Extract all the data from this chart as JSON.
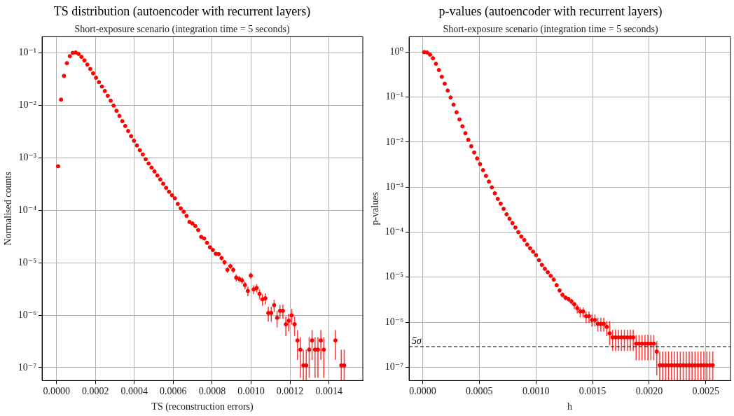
{
  "chart_data": [
    {
      "type": "scatter",
      "title": "TS distribution (autoencoder with recurrent layers)",
      "subtitle": "Short-exposure scenario (integration time = 5 seconds)",
      "xlabel": "TS (reconstruction errors)",
      "ylabel": "Normalised counts",
      "log": "y",
      "grid": true,
      "marker": "circle",
      "xlim": [
        -7.4e-05,
        0.001574
      ],
      "xticks": [
        {
          "value": 0,
          "label": "0.0000"
        },
        {
          "value": 0.0002,
          "label": "0.0002"
        },
        {
          "value": 0.0004,
          "label": "0.0004"
        },
        {
          "value": 0.0006,
          "label": "0.0006"
        },
        {
          "value": 0.0008,
          "label": "0.0008"
        },
        {
          "value": 0.001,
          "label": "0.0010"
        },
        {
          "value": 0.0012,
          "label": "0.0012"
        },
        {
          "value": 0.0014,
          "label": "0.0014"
        }
      ],
      "ylim": [
        5.66e-08,
        0.204
      ],
      "yticks": [
        {
          "value": 1e-07,
          "label": "10⁻⁷"
        },
        {
          "value": 1e-06,
          "label": "10⁻⁶"
        },
        {
          "value": 1e-05,
          "label": "10⁻⁵"
        },
        {
          "value": 0.0001,
          "label": "10⁻⁴"
        },
        {
          "value": 0.001,
          "label": "10⁻³"
        },
        {
          "value": 0.01,
          "label": "10⁻²"
        },
        {
          "value": 0.1,
          "label": "10⁻¹"
        }
      ],
      "x": [
        8.5e-06,
        2.35e-05,
        3.85e-05,
        5.35e-05,
        6.85e-05,
        8.35e-05,
        9.85e-05,
        0.0001135,
        0.0001285,
        0.0001435,
        0.0001585,
        0.0001735,
        0.0001885,
        0.0002035,
        0.0002185,
        0.0002335,
        0.0002485,
        0.0002635,
        0.0002785,
        0.0002935,
        0.0003085,
        0.0003235,
        0.0003385,
        0.0003535,
        0.0003685,
        0.0003835,
        0.0003985,
        0.0004135,
        0.0004285,
        0.0004435,
        0.0004585,
        0.0004735,
        0.0004885,
        0.0005035,
        0.0005185,
        0.0005335,
        0.0005485,
        0.0005635,
        0.0005785,
        0.0005935,
        0.0006085,
        0.0006235,
        0.0006385,
        0.0006535,
        0.0006685,
        0.0006835,
        0.0006985,
        0.0007135,
        0.0007285,
        0.0007435,
        0.0007585,
        0.0007735,
        0.0007885,
        0.0008035,
        0.0008185,
        0.0008335,
        0.0008485,
        0.0008635,
        0.0008785,
        0.0008935,
        0.0009085,
        0.0009235,
        0.0009385,
        0.0009535,
        0.0009685,
        0.0009835,
        0.0009985,
        0.0010135,
        0.0010285,
        0.0010435,
        0.0010585,
        0.0010735,
        0.0010885,
        0.0011035,
        0.0011185,
        0.0011335,
        0.0011485,
        0.0011635,
        0.0011785,
        0.0011935,
        0.0012085,
        0.0012235,
        0.0012385,
        0.0012535,
        0.0012685,
        0.0012835,
        0.0012985,
        0.0013135,
        0.0013285,
        0.0013435,
        0.0013585,
        0.0013735,
        0.0013885,
        0.0014035,
        0.0014185,
        0.0014335,
        0.0014485,
        0.0014635,
        0.0014785
      ],
      "series": [
        {
          "color": "#ff0000",
          "values": [
            0.00069,
            0.0129,
            0.0365,
            0.0638,
            0.0867,
            0.1,
            0.102,
            0.096,
            0.084,
            0.072,
            0.06,
            0.0495,
            0.0408,
            0.0336,
            0.0277,
            0.0229,
            0.0188,
            0.0152,
            0.0123,
            0.0099,
            0.0079,
            0.0063,
            0.005,
            0.00405,
            0.00324,
            0.00259,
            0.00211,
            0.00172,
            0.0014,
            0.00116,
            0.00094,
            0.00078,
            0.00065,
            0.00055,
            0.00046,
            0.000386,
            0.000321,
            0.000267,
            0.000225,
            0.000193,
            0.000169,
            0.000132,
            0.000109,
            9.4e-05,
            7.8e-05,
            6e-05,
            5.6e-05,
            5e-05,
            4.2e-05,
            3.1e-05,
            2.9e-05,
            2.4e-05,
            1.97e-05,
            1.75e-05,
            1.48e-05,
            1.46e-05,
            1.23e-05,
            1.02e-05,
            7.3e-06,
            8.6e-06,
            7.3e-06,
            5.2e-06,
            4.9e-06,
            4.6e-06,
            3.75e-06,
            2.9e-06,
            5.7e-06,
            3.1e-06,
            3.3e-06,
            2.55e-06,
            2e-06,
            2.1e-06,
            1.1e-06,
            1.1e-06,
            1.55e-06,
            8.9e-07,
            1.21e-06,
            1.21e-06,
            6.7e-07,
            7.8e-07,
            9.9e-07,
            6.7e-07,
            3.3e-07,
            2.2e-07,
            1.1e-07,
            1.1e-07,
            2.2e-07,
            3.3e-07,
            2.2e-07,
            2.2e-07,
            3.3e-07,
            2.2e-07,
            null,
            null,
            null,
            3.3e-07,
            null,
            1.1e-07,
            1.1e-07
          ],
          "errors": [
            null,
            null,
            null,
            null,
            null,
            null,
            null,
            null,
            null,
            null,
            null,
            null,
            null,
            null,
            null,
            null,
            null,
            null,
            null,
            null,
            null,
            null,
            null,
            null,
            null,
            null,
            null,
            null,
            null,
            null,
            null,
            null,
            null,
            null,
            null,
            null,
            null,
            null,
            null,
            null,
            null,
            null,
            null,
            null,
            null,
            null,
            null,
            null,
            null,
            [
              2.9e-05,
              3.3e-05
            ],
            [
              2.73e-05,
              3.07e-05
            ],
            [
              2.24e-05,
              2.56e-05
            ],
            [
              1.82e-05,
              2.12e-05
            ],
            [
              1.61e-05,
              1.89e-05
            ],
            [
              1.35e-05,
              1.61e-05
            ],
            [
              1.33e-05,
              1.59e-05
            ],
            [
              1.11e-05,
              1.35e-05
            ],
            [
              9.1e-06,
              1.13e-05
            ],
            [
              6.4e-06,
              8.2e-06
            ],
            [
              7.6e-06,
              9.6e-06
            ],
            [
              6.4e-06,
              8.2e-06
            ],
            [
              4.4e-06,
              6e-06
            ],
            [
              4.2e-06,
              5.6e-06
            ],
            [
              3.9e-06,
              5.3e-06
            ],
            [
              3.1e-06,
              4.4e-06
            ],
            [
              2.3e-06,
              3.5e-06
            ],
            [
              4.9e-06,
              6.5e-06
            ],
            [
              2.5e-06,
              3.7e-06
            ],
            [
              2.7e-06,
              3.9e-06
            ],
            [
              2e-06,
              3.1e-06
            ],
            [
              1.5e-06,
              2.5e-06
            ],
            [
              1.6e-06,
              2.6e-06
            ],
            [
              7.5e-07,
              1.45e-06
            ],
            [
              7.5e-07,
              1.45e-06
            ],
            [
              1.14e-06,
              1.96e-06
            ],
            [
              5.8e-07,
              1.2e-06
            ],
            [
              8.5e-07,
              1.57e-06
            ],
            [
              8.5e-07,
              1.57e-06
            ],
            [
              4e-07,
              9.4e-07
            ],
            [
              4.9e-07,
              1.07e-06
            ],
            [
              6.6e-07,
              1.32e-06
            ],
            [
              4e-07,
              9.4e-07
            ],
            [
              1.4e-07,
              5.2e-07
            ],
            [
              6.4e-08,
              3.8e-07
            ],
            [
              5.7e-08,
              2.2e-07
            ],
            [
              5.7e-08,
              2.2e-07
            ],
            [
              6.4e-08,
              3.8e-07
            ],
            [
              1.4e-07,
              5.2e-07
            ],
            [
              6.4e-08,
              3.8e-07
            ],
            [
              6.4e-08,
              3.8e-07
            ],
            [
              1.4e-07,
              5.2e-07
            ],
            [
              6.4e-08,
              3.8e-07
            ],
            null,
            null,
            null,
            [
              1.4e-07,
              5.2e-07
            ],
            null,
            [
              5.7e-08,
              2.2e-07
            ],
            [
              5.7e-08,
              2.2e-07
            ]
          ],
          "xerrors": [
            7.5e-06,
            7.5e-06,
            7.5e-06,
            7.5e-06,
            7.5e-06,
            7.5e-06,
            7.5e-06,
            7.5e-06,
            7.5e-06,
            7.5e-06,
            7.5e-06,
            7.5e-06,
            7.5e-06,
            7.5e-06,
            7.5e-06,
            7.5e-06,
            7.5e-06,
            7.5e-06,
            7.5e-06,
            7.5e-06,
            7.5e-06,
            7.5e-06,
            7.5e-06,
            7.5e-06,
            7.5e-06,
            7.5e-06,
            7.5e-06,
            7.5e-06,
            7.5e-06,
            7.5e-06,
            7.5e-06,
            7.5e-06,
            7.5e-06,
            7.5e-06,
            7.5e-06,
            7.5e-06,
            7.5e-06,
            7.5e-06,
            7.5e-06,
            7.5e-06,
            7.5e-06,
            7.5e-06,
            7.5e-06,
            7.5e-06,
            7.5e-06,
            7.5e-06,
            7.5e-06,
            7.5e-06,
            7.5e-06,
            7.5e-06,
            7.5e-06,
            7.5e-06,
            7.5e-06,
            7.5e-06,
            7.5e-06,
            7.5e-06,
            7.5e-06,
            7.5e-06,
            7.5e-06,
            7.5e-06,
            7.5e-06,
            7.5e-06,
            7.5e-06,
            7.5e-06,
            7.5e-06,
            7.5e-06,
            7.5e-06,
            7.5e-06,
            7.5e-06,
            7.5e-06,
            7.5e-06,
            7.5e-06,
            7.5e-06,
            7.5e-06,
            7.5e-06,
            7.5e-06,
            7.5e-06,
            7.5e-06,
            7.5e-06,
            7.5e-06,
            7.5e-06,
            7.5e-06,
            7.5e-06,
            7.5e-06,
            7.5e-06,
            7.5e-06,
            7.5e-06,
            7.5e-06,
            7.5e-06,
            7.5e-06,
            7.5e-06,
            7.5e-06,
            null,
            null,
            null,
            7.5e-06,
            null,
            7.5e-06,
            7.5e-06
          ]
        }
      ]
    },
    {
      "type": "scatter",
      "title": "p-values (autoencoder with recurrent layers)",
      "subtitle": "Short-exposure scenario (integration time = 5 seconds)",
      "xlabel": "h",
      "ylabel": "p-values",
      "log": "y",
      "grid": true,
      "marker": "circle",
      "xlim": [
        -0.00012,
        0.002718
      ],
      "xticks": [
        {
          "value": 0,
          "label": "0.0000"
        },
        {
          "value": 0.0005,
          "label": "0.0005"
        },
        {
          "value": 0.001,
          "label": "0.0010"
        },
        {
          "value": 0.0015,
          "label": "0.0015"
        },
        {
          "value": 0.002,
          "label": "0.0020"
        },
        {
          "value": 0.0025,
          "label": "0.0025"
        }
      ],
      "ylim": [
        5.06e-08,
        2.2
      ],
      "yticks": [
        {
          "value": 1e-07,
          "label": "10⁻⁷"
        },
        {
          "value": 1e-06,
          "label": "10⁻⁶"
        },
        {
          "value": 1e-05,
          "label": "10⁻⁵"
        },
        {
          "value": 0.0001,
          "label": "10⁻⁴"
        },
        {
          "value": 0.001,
          "label": "10⁻³"
        },
        {
          "value": 0.01,
          "label": "10⁻²"
        },
        {
          "value": 0.1,
          "label": "10⁻¹"
        },
        {
          "value": 1,
          "label": "10⁰"
        }
      ],
      "ref_lines": [
        {
          "axis": "y",
          "value": 2.87e-07,
          "label": "5σ",
          "color": "#000000",
          "line_style": "dashed"
        }
      ],
      "x": [
        1.3e-05,
        3.9e-05,
        6.5e-05,
        9.1e-05,
        0.000117,
        0.000143,
        0.000169,
        0.000195,
        0.000221,
        0.000247,
        0.000273,
        0.000299,
        0.000325,
        0.000351,
        0.000377,
        0.000403,
        0.000429,
        0.000455,
        0.000481,
        0.000507,
        0.000533,
        0.000559,
        0.000585,
        0.000611,
        0.000637,
        0.000663,
        0.000689,
        0.000715,
        0.000741,
        0.000767,
        0.000793,
        0.000819,
        0.000845,
        0.000871,
        0.000897,
        0.000923,
        0.000949,
        0.000975,
        0.001001,
        0.001027,
        0.001053,
        0.001079,
        0.001105,
        0.001131,
        0.001157,
        0.001183,
        0.001209,
        0.001235,
        0.001261,
        0.001287,
        0.001313,
        0.001339,
        0.001365,
        0.001391,
        0.001417,
        0.001443,
        0.001469,
        0.001495,
        0.001521,
        0.001547,
        0.001573,
        0.001599,
        0.001625,
        0.001651,
        0.001677,
        0.001703,
        0.001729,
        0.001755,
        0.001781,
        0.001807,
        0.001833,
        0.001859,
        0.001885,
        0.001911,
        0.001937,
        0.001963,
        0.001989,
        0.002015,
        0.002041,
        0.002067,
        0.002093,
        0.002119,
        0.002145,
        0.002171,
        0.002197,
        0.002223,
        0.002249,
        0.002275,
        0.002301,
        0.002327,
        0.002353,
        0.002379,
        0.002405,
        0.002431,
        0.002457,
        0.002483,
        0.002509,
        0.002535,
        0.002561
      ],
      "series": [
        {
          "color": "#ff0000",
          "values": [
            1.0,
            0.98,
            0.88,
            0.73,
            0.55,
            0.4,
            0.283,
            0.199,
            0.14,
            0.098,
            0.068,
            0.046,
            0.032,
            0.0225,
            0.0158,
            0.0113,
            0.0081,
            0.0059,
            0.00436,
            0.00325,
            0.00239,
            0.00178,
            0.00133,
            0.00099,
            0.00073,
            0.00055,
            0.00043,
            0.00033,
            0.00025,
            0.000199,
            0.000159,
            0.000127,
            0.0001,
            8e-05,
            6.7e-05,
            5.3e-05,
            4.4e-05,
            3.7e-05,
            3.1e-05,
            2.4e-05,
            1.88e-05,
            1.54e-05,
            1.29e-05,
            1.07e-05,
            8.85e-06,
            6.66e-06,
            5.08e-06,
            4.06e-06,
            3.52e-06,
            3.28e-06,
            2.92e-06,
            2.5e-06,
            2.05e-06,
            1.74e-06,
            1.74e-06,
            1.36e-06,
            1.36e-06,
            1.12e-06,
            1.12e-06,
            9.2e-07,
            9.2e-07,
            9.2e-07,
            7.9e-07,
            5.65e-07,
            4.6e-07,
            4.6e-07,
            4.6e-07,
            4.6e-07,
            4.6e-07,
            4.6e-07,
            4.6e-07,
            4.6e-07,
            3.34e-07,
            3.34e-07,
            3.34e-07,
            3.34e-07,
            3.34e-07,
            3.34e-07,
            3.34e-07,
            2.23e-07,
            1.11e-07,
            1.11e-07,
            1.11e-07,
            1.11e-07,
            1.11e-07,
            1.11e-07,
            1.11e-07,
            1.11e-07,
            1.11e-07,
            1.11e-07,
            1.11e-07,
            1.11e-07,
            1.11e-07,
            1.11e-07,
            1.11e-07,
            1.11e-07,
            1.11e-07,
            1.11e-07,
            1.11e-07
          ],
          "errors": [
            null,
            null,
            null,
            null,
            null,
            null,
            null,
            null,
            null,
            null,
            null,
            null,
            null,
            null,
            null,
            null,
            null,
            null,
            null,
            null,
            null,
            null,
            null,
            null,
            null,
            null,
            null,
            null,
            null,
            null,
            null,
            null,
            null,
            null,
            null,
            null,
            null,
            null,
            null,
            null,
            null,
            null,
            null,
            null,
            [
              8.1e-06,
              9.6e-06
            ],
            [
              6e-06,
              7.4e-06
            ],
            [
              4.5e-06,
              5.7e-06
            ],
            [
              3.52e-06,
              4.6e-06
            ],
            [
              3.05e-06,
              3.97e-06
            ],
            [
              2.85e-06,
              3.7e-06
            ],
            [
              2.47e-06,
              3.32e-06
            ],
            [
              1.95e-06,
              2.85e-06
            ],
            [
              1.58e-06,
              2.45e-06
            ],
            [
              1.28e-06,
              2.12e-06
            ],
            [
              1.28e-06,
              2.12e-06
            ],
            [
              9.6e-07,
              1.74e-06
            ],
            [
              9.6e-07,
              1.74e-06
            ],
            [
              8e-07,
              1.49e-06
            ],
            [
              8e-07,
              1.49e-06
            ],
            [
              6.2e-07,
              1.26e-06
            ],
            [
              6.2e-07,
              1.26e-06
            ],
            [
              6.2e-07,
              1.26e-06
            ],
            [
              4.9e-07,
              1.06e-06
            ],
            [
              3.1e-07,
              1.06e-06
            ],
            [
              2.3e-07,
              6.8e-07
            ],
            [
              2.3e-07,
              6.8e-07
            ],
            [
              2.3e-07,
              6.8e-07
            ],
            [
              2.3e-07,
              6.8e-07
            ],
            [
              2.3e-07,
              6.8e-07
            ],
            [
              2.3e-07,
              6.8e-07
            ],
            [
              2.3e-07,
              6.8e-07
            ],
            [
              2.3e-07,
              6.8e-07
            ],
            [
              1.43e-07,
              5.2e-07
            ],
            [
              1.43e-07,
              5.2e-07
            ],
            [
              1.43e-07,
              5.2e-07
            ],
            [
              1.43e-07,
              5.2e-07
            ],
            [
              1.43e-07,
              5.2e-07
            ],
            [
              1.43e-07,
              5.2e-07
            ],
            [
              1.43e-07,
              5.2e-07
            ],
            [
              6.6e-08,
              3.8e-07
            ],
            [
              5.1e-08,
              2.23e-07
            ],
            [
              5.1e-08,
              2.23e-07
            ],
            [
              5.1e-08,
              2.23e-07
            ],
            [
              5.1e-08,
              2.23e-07
            ],
            [
              5.1e-08,
              2.23e-07
            ],
            [
              5.1e-08,
              2.23e-07
            ],
            [
              5.1e-08,
              2.23e-07
            ],
            [
              5.1e-08,
              2.23e-07
            ],
            [
              5.1e-08,
              2.23e-07
            ],
            [
              5.1e-08,
              2.23e-07
            ],
            [
              5.1e-08,
              2.23e-07
            ],
            [
              5.1e-08,
              2.23e-07
            ],
            [
              5.1e-08,
              2.23e-07
            ],
            [
              5.1e-08,
              2.23e-07
            ],
            [
              5.1e-08,
              2.23e-07
            ],
            [
              5.1e-08,
              2.23e-07
            ],
            [
              5.1e-08,
              2.23e-07
            ],
            [
              5.1e-08,
              2.23e-07
            ],
            [
              5.1e-08,
              2.23e-07
            ]
          ],
          "xerrors": [
            1.3e-05,
            1.3e-05,
            1.3e-05,
            1.3e-05,
            1.3e-05,
            1.3e-05,
            1.3e-05,
            1.3e-05,
            1.3e-05,
            1.3e-05,
            1.3e-05,
            1.3e-05,
            1.3e-05,
            1.3e-05,
            1.3e-05,
            1.3e-05,
            1.3e-05,
            1.3e-05,
            1.3e-05,
            1.3e-05,
            1.3e-05,
            1.3e-05,
            1.3e-05,
            1.3e-05,
            1.3e-05,
            1.3e-05,
            1.3e-05,
            1.3e-05,
            1.3e-05,
            1.3e-05,
            1.3e-05,
            1.3e-05,
            1.3e-05,
            1.3e-05,
            1.3e-05,
            1.3e-05,
            1.3e-05,
            1.3e-05,
            1.3e-05,
            1.3e-05,
            1.3e-05,
            1.3e-05,
            1.3e-05,
            1.3e-05,
            1.3e-05,
            1.3e-05,
            1.3e-05,
            1.3e-05,
            1.3e-05,
            1.3e-05,
            1.3e-05,
            1.3e-05,
            1.3e-05,
            1.3e-05,
            1.3e-05,
            1.3e-05,
            1.3e-05,
            1.3e-05,
            1.3e-05,
            1.3e-05,
            1.3e-05,
            1.3e-05,
            1.3e-05,
            1.3e-05,
            1.3e-05,
            1.3e-05,
            1.3e-05,
            1.3e-05,
            1.3e-05,
            1.3e-05,
            1.3e-05,
            1.3e-05,
            1.3e-05,
            1.3e-05,
            1.3e-05,
            1.3e-05,
            1.3e-05,
            1.3e-05,
            1.3e-05,
            1.3e-05,
            1.3e-05,
            1.3e-05,
            1.3e-05,
            1.3e-05,
            1.3e-05,
            1.3e-05,
            1.3e-05,
            1.3e-05,
            1.3e-05,
            1.3e-05,
            1.3e-05,
            1.3e-05,
            1.3e-05,
            1.3e-05,
            1.3e-05,
            1.3e-05,
            1.3e-05,
            1.3e-05,
            1.3e-05
          ]
        }
      ]
    }
  ]
}
